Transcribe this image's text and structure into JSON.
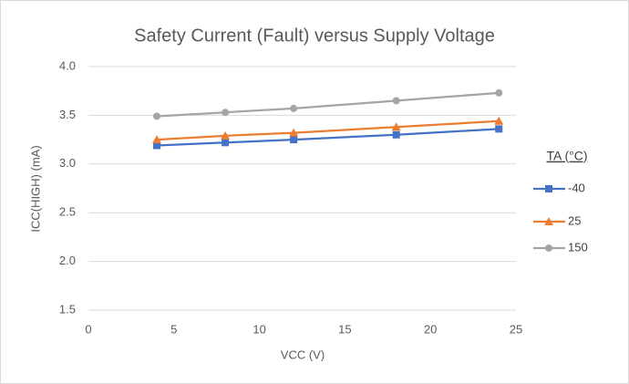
{
  "chart_data": {
    "type": "line",
    "title": "Safety Current (Fault) versus Supply Voltage",
    "xlabel": "VCC (V)",
    "ylabel": "ICC(HIGH) (mA)",
    "legend_title": "TA (°C)",
    "legend": "right",
    "grid": true,
    "x": [
      4,
      8,
      12,
      18,
      24
    ],
    "series": [
      {
        "name": "-40",
        "color": "#4472c4",
        "marker": "square",
        "values": [
          3.19,
          3.22,
          3.25,
          3.3,
          3.36
        ]
      },
      {
        "name": "25",
        "color": "#ed7d31",
        "marker": "triangle",
        "values": [
          3.25,
          3.29,
          3.32,
          3.38,
          3.44
        ]
      },
      {
        "name": "150",
        "color": "#a5a5a5",
        "marker": "circle",
        "values": [
          3.49,
          3.53,
          3.57,
          3.65,
          3.73
        ]
      }
    ],
    "xlim": [
      0,
      25
    ],
    "xticks": [
      0,
      5,
      10,
      15,
      20,
      25
    ],
    "ylim": [
      1.5,
      4.0
    ],
    "yticks": [
      1.5,
      {
        "value": 2,
        "label": "2.0"
      },
      2.5,
      {
        "value": 3,
        "label": "3.0"
      },
      3.5,
      {
        "value": 4,
        "label": "4.0"
      }
    ]
  }
}
